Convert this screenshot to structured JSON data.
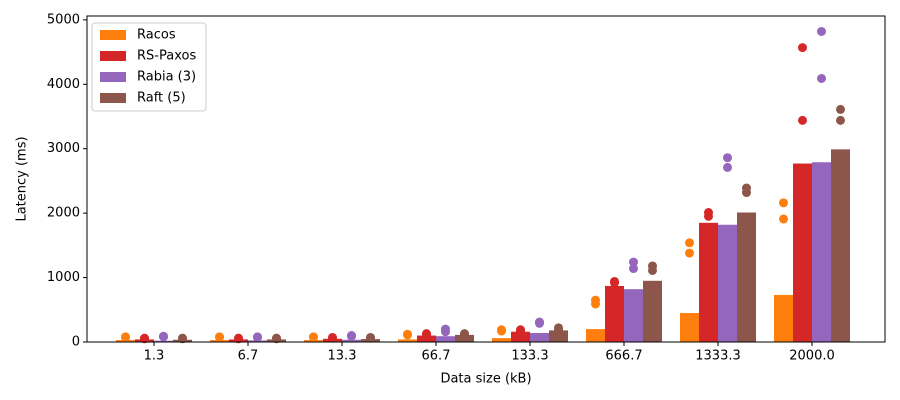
{
  "chart_data": {
    "type": "bar",
    "x_label": "Data size (kB)",
    "y_label": "Latency (ms)",
    "categories": [
      "1.3",
      "6.7",
      "13.3",
      "66.7",
      "133.3",
      "666.7",
      "1333.3",
      "2000.0"
    ],
    "ylim": [
      0,
      5060
    ],
    "yticks": [
      0,
      1000,
      2000,
      3000,
      4000,
      5000
    ],
    "legend": "upper-left",
    "series": [
      {
        "name": "Racos",
        "color": "#ff7f0e",
        "values": [
          30,
          30,
          30,
          40,
          60,
          200,
          450,
          730
        ],
        "points": [
          [
            80,
            70
          ],
          [
            80,
            75
          ],
          [
            80,
            75
          ],
          [
            120,
            110
          ],
          [
            190,
            170
          ],
          [
            650,
            590
          ],
          [
            1540,
            1380
          ],
          [
            2160,
            1910
          ]
        ]
      },
      {
        "name": "RS-Paxos",
        "color": "#d62728",
        "values": [
          40,
          40,
          50,
          100,
          160,
          870,
          1850,
          2770
        ],
        "points": [
          [
            60,
            50
          ],
          [
            60,
            50
          ],
          [
            70,
            60
          ],
          [
            130,
            120
          ],
          [
            190,
            170
          ],
          [
            940,
            920
          ],
          [
            2010,
            1950
          ],
          [
            4570,
            3440
          ]
        ]
      },
      {
        "name": "Rabia (3)",
        "color": "#9467bd",
        "values": [
          20,
          25,
          35,
          90,
          140,
          820,
          1820,
          2790
        ],
        "points": [
          [
            90,
            80
          ],
          [
            80,
            70
          ],
          [
            100,
            90
          ],
          [
            200,
            160
          ],
          [
            310,
            290
          ],
          [
            1240,
            1140
          ],
          [
            2860,
            2710
          ],
          [
            4820,
            4090
          ]
        ]
      },
      {
        "name": "Raft (5)",
        "color": "#8c564b",
        "values": [
          35,
          40,
          45,
          110,
          180,
          950,
          2010,
          2990
        ],
        "points": [
          [
            60,
            50
          ],
          [
            60,
            50
          ],
          [
            70,
            60
          ],
          [
            130,
            120
          ],
          [
            220,
            190
          ],
          [
            1180,
            1110
          ],
          [
            2390,
            2320
          ],
          [
            3610,
            3440
          ]
        ]
      }
    ]
  }
}
